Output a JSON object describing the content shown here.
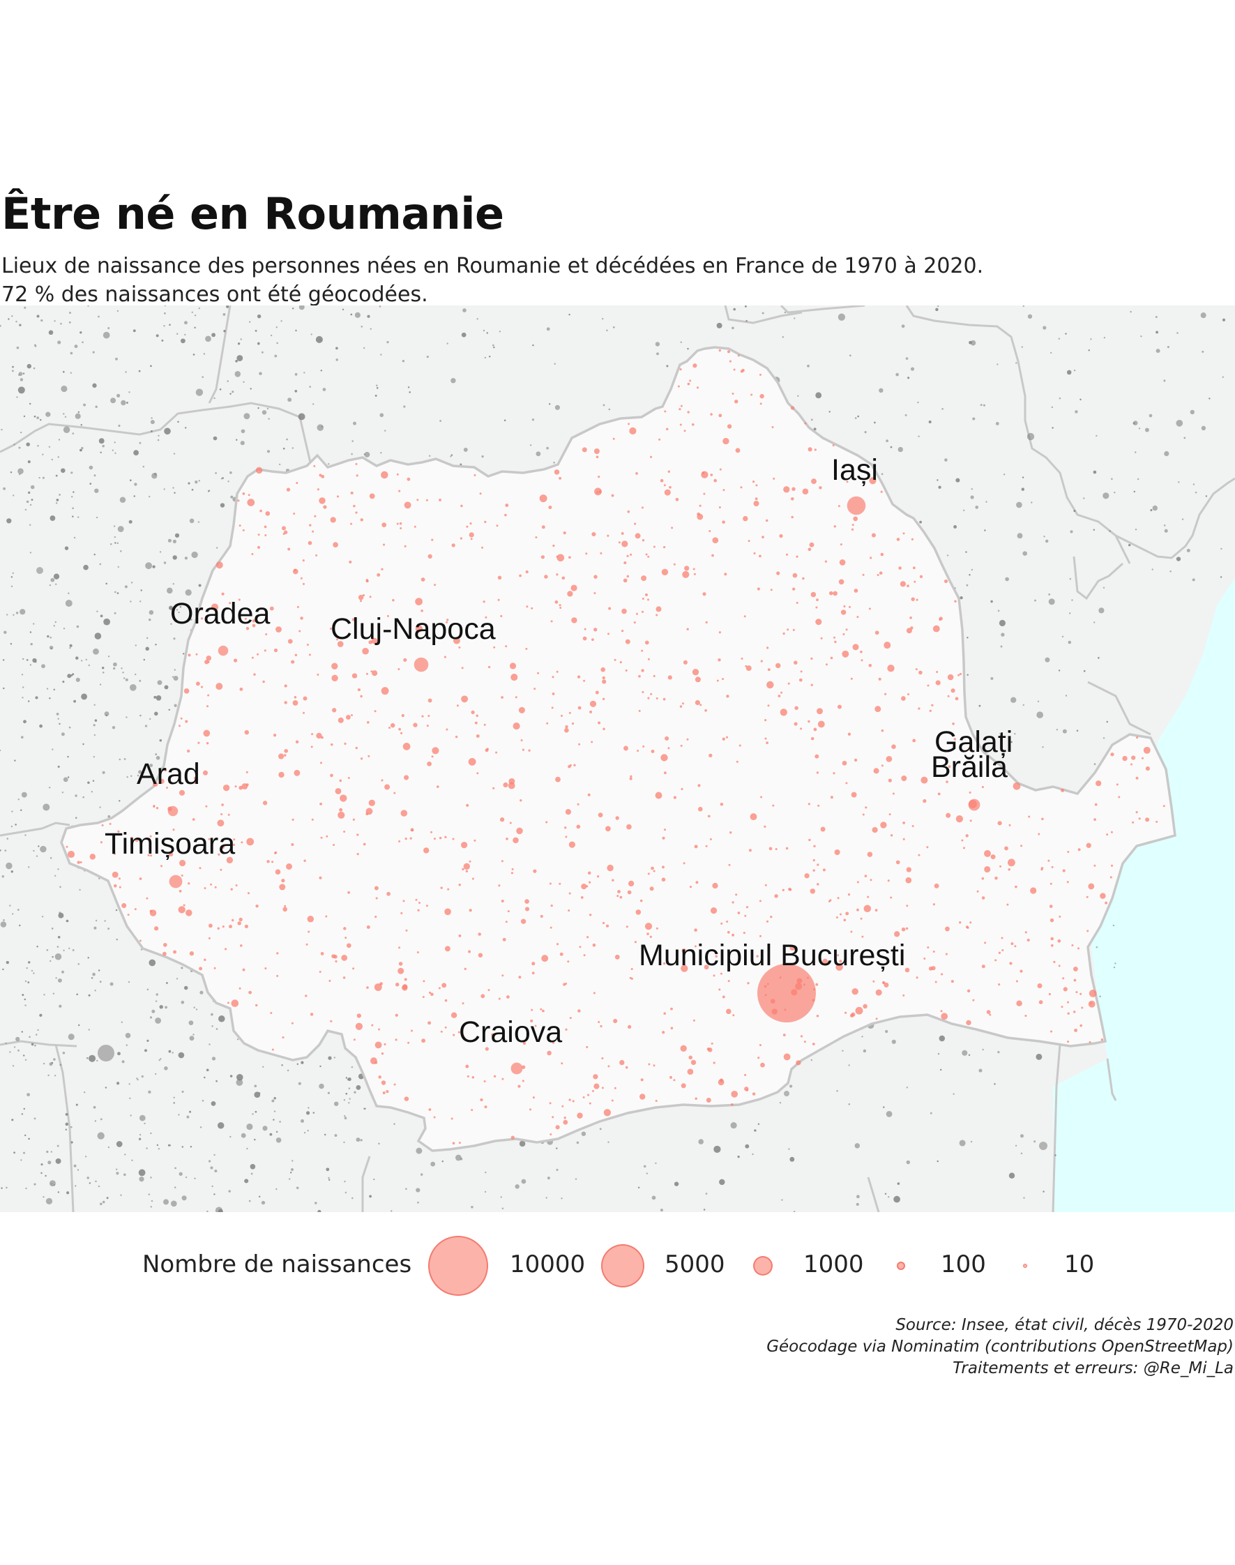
{
  "title": "Être né en Roumanie",
  "subtitle_line1": "Lieux de naissance des personnes nées en Roumanie et décédées en France de 1970 à 2020.",
  "subtitle_line2": "72 % des naissances ont été géocodées.",
  "cities": [
    {
      "name": "Iași",
      "size": 1000
    },
    {
      "name": "Oradea",
      "size": 300
    },
    {
      "name": "Cluj-Napoca",
      "size": 600
    },
    {
      "name": "Galați",
      "size": 200
    },
    {
      "name": "Brăila",
      "size": 400
    },
    {
      "name": "Arad",
      "size": 300
    },
    {
      "name": "Timișoara",
      "size": 500
    },
    {
      "name": "Municipiul București",
      "size": 10000
    },
    {
      "name": "Craiova",
      "size": 400
    }
  ],
  "legend": {
    "title": "Nombre de naissances",
    "items": [
      {
        "label": "10000",
        "value": 10000
      },
      {
        "label": "5000",
        "value": 5000
      },
      {
        "label": "1000",
        "value": 1000
      },
      {
        "label": "100",
        "value": 100
      },
      {
        "label": "10",
        "value": 10
      }
    ]
  },
  "source": {
    "line1": "Source: Insee, état civil, décès 1970-2020",
    "line2": "Géocodage via Nominatim (contributions OpenStreetMap)",
    "line3": "Traitements et erreurs: @Re_Mi_La"
  },
  "colors": {
    "points": "#fa8072",
    "outside_points": "#808080",
    "romania_fill": "#fafafa",
    "neighbors_fill": "#f1f2f2",
    "sea": "#e0ffff",
    "border": "#c8c8c8"
  }
}
